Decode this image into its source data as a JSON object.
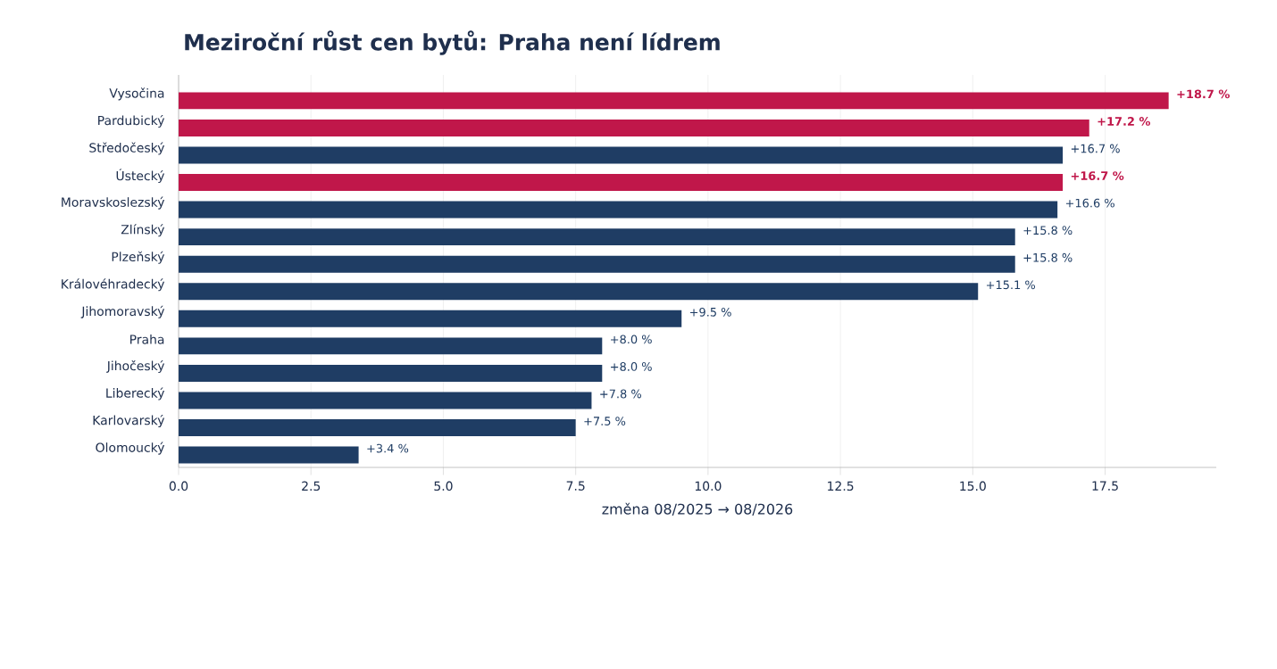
{
  "chart_data": {
    "type": "bar",
    "orientation": "horizontal",
    "title": "Meziroční růst cen bytů: Praha není lídrem",
    "xlabel": "změna 08/2025 → 08/2026",
    "categories": [
      "Vysočina",
      "Pardubický",
      "Středočeský",
      "Ústecký",
      "Moravskoslezský",
      "Zlínský",
      "Plzeňský",
      "Královéhradecký",
      "Jihomoravský",
      "Praha",
      "Jihočeský",
      "Liberecký",
      "Karlovarský",
      "Olomoucký"
    ],
    "values": [
      18.7,
      17.2,
      16.7,
      16.7,
      16.6,
      15.8,
      15.8,
      15.1,
      9.5,
      8.0,
      8.0,
      7.8,
      7.5,
      3.4
    ],
    "value_labels": [
      "+18.7 %",
      "+17.2 %",
      "+16.7 %",
      "+16.7 %",
      "+16.6 %",
      "+15.8 %",
      "+15.8 %",
      "+15.1 %",
      "+9.5 %",
      "+8.0 %",
      "+8.0 %",
      "+7.8 %",
      "+7.5 %",
      "+3.4 %"
    ],
    "colors": [
      "#c0174a",
      "#c0174a",
      "#1f3d64",
      "#c0174a",
      "#1f3d64",
      "#1f3d64",
      "#1f3d64",
      "#1f3d64",
      "#1f3d64",
      "#1f3d64",
      "#1f3d64",
      "#1f3d64",
      "#1f3d64",
      "#1f3d64"
    ],
    "xlim": [
      0,
      19.6
    ],
    "xticks": [
      {
        "value": 0,
        "label": "0.0"
      },
      2.5,
      {
        "value": 5,
        "label": "5.0"
      },
      7.5,
      {
        "value": 10,
        "label": "10.0"
      },
      12.5,
      {
        "value": 15,
        "label": "15.0"
      },
      17.5
    ],
    "grid": "x"
  }
}
